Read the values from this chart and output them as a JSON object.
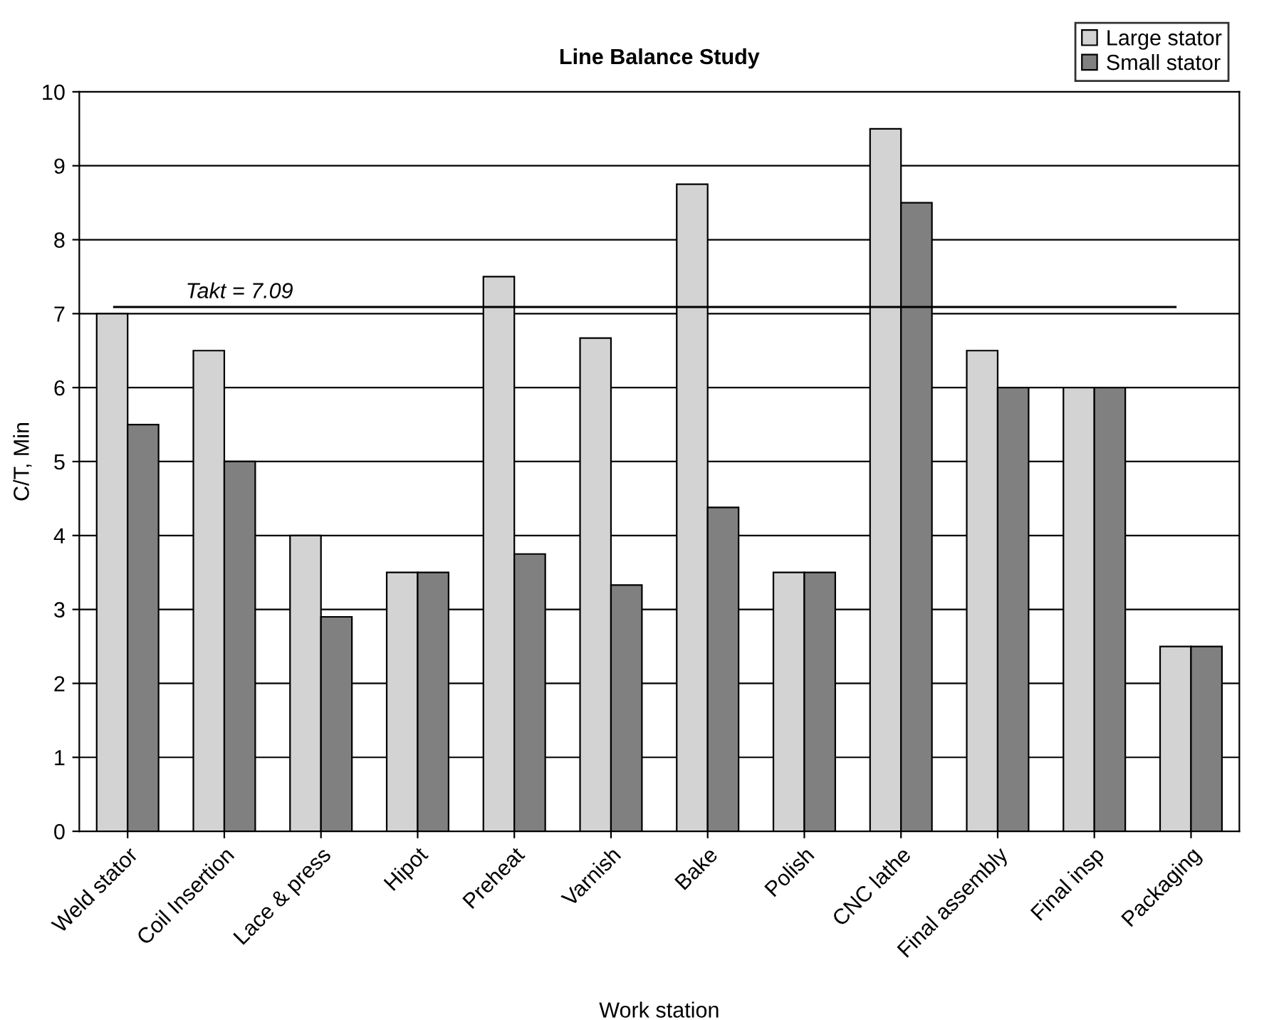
{
  "chart_data": {
    "type": "bar",
    "title": "Line Balance Study",
    "xlabel": "Work station",
    "ylabel": "C/T, Min",
    "categories": [
      "Weld stator",
      "Coil Insertion",
      "Lace & press",
      "Hipot",
      "Preheat",
      "Varnish",
      "Bake",
      "Polish",
      "CNC lathe",
      "Final assembly",
      "Final insp",
      "Packaging"
    ],
    "series": [
      {
        "name": "Large stator",
        "color": "#d3d3d3",
        "values": [
          7,
          6.5,
          4,
          3.5,
          7.5,
          6.67,
          8.75,
          3.5,
          9.5,
          6.5,
          6,
          2.5
        ]
      },
      {
        "name": "Small stator",
        "color": "#808080",
        "values": [
          5.5,
          5,
          2.9,
          3.5,
          3.75,
          3.33,
          4.38,
          3.5,
          8.5,
          6,
          6,
          2.5
        ]
      }
    ],
    "ylim": [
      0,
      10
    ],
    "yticks": [
      0,
      1,
      2,
      3,
      4,
      5,
      6,
      7,
      8,
      9,
      10
    ],
    "grid": "y",
    "legend": "top right",
    "ref_lines": [
      {
        "axis": "y",
        "value": 7.09,
        "label": "Takt = 7.09",
        "color": "#000000"
      }
    ]
  }
}
